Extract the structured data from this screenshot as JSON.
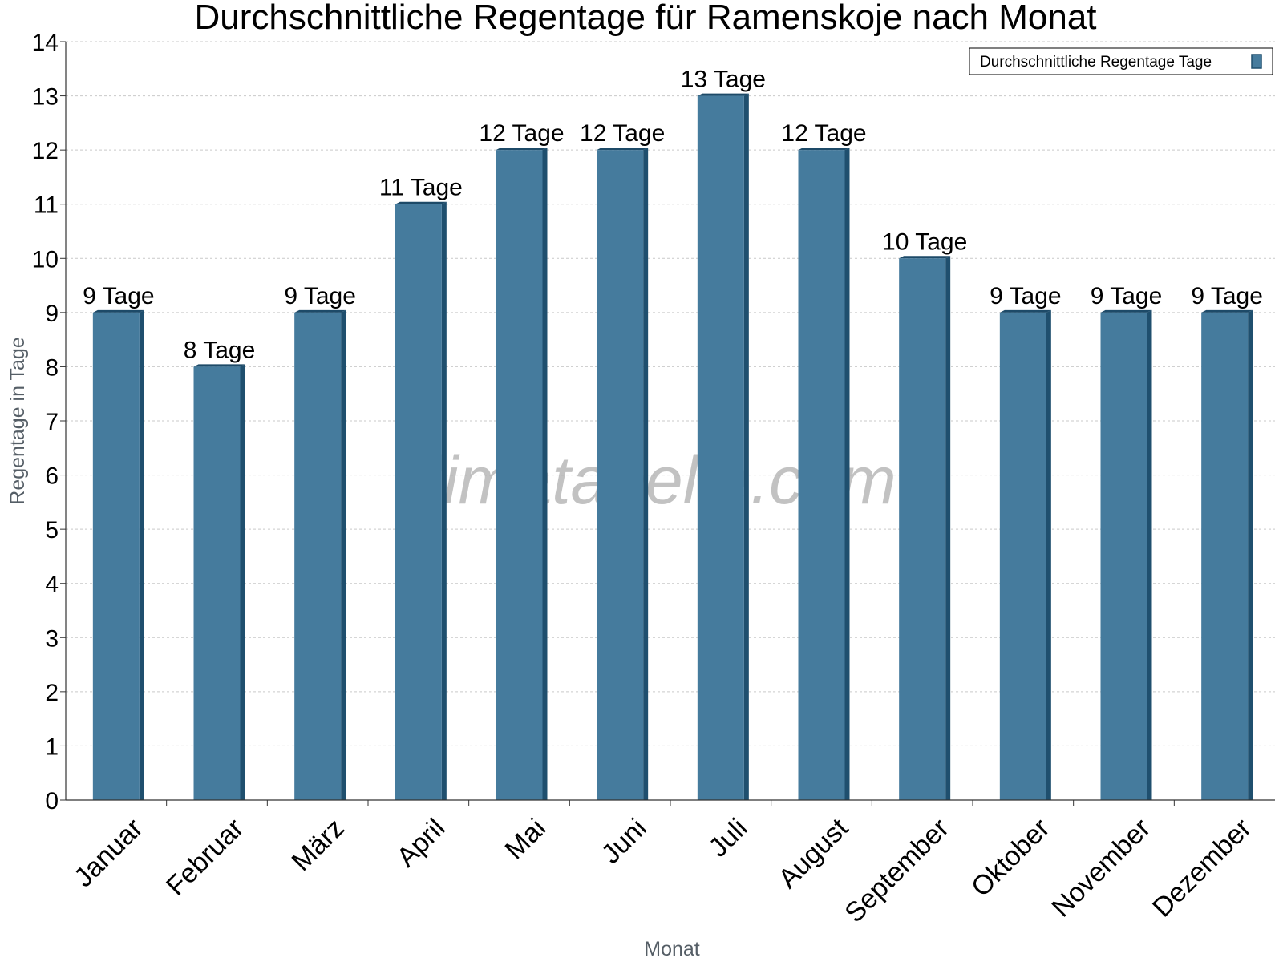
{
  "chart_data": {
    "type": "bar",
    "title": "Durchschnittliche Regentage für Ramenskoje nach Monat",
    "xlabel": "Monat",
    "ylabel": "Regentage in Tage",
    "categories": [
      "Januar",
      "Februar",
      "März",
      "April",
      "Mai",
      "Juni",
      "Juli",
      "August",
      "September",
      "Oktober",
      "November",
      "Dezember"
    ],
    "series": [
      {
        "name": "Durchschnittliche Regentage Tage",
        "values": [
          9,
          8,
          9,
          11,
          12,
          12,
          13,
          12,
          10,
          9,
          9,
          9
        ],
        "labels": [
          "9 Tage",
          "8 Tage",
          "9 Tage",
          "11 Tage",
          "12 Tage",
          "12 Tage",
          "13 Tage",
          "12 Tage",
          "10 Tage",
          "9 Tage",
          "9 Tage",
          "9 Tage"
        ],
        "color": "#457b9d"
      }
    ],
    "ylim": [
      0,
      14
    ],
    "yticks": [
      0,
      1,
      2,
      3,
      4,
      5,
      6,
      7,
      8,
      9,
      10,
      11,
      12,
      13,
      14
    ],
    "grid": true,
    "legend_position": "top-right",
    "watermark": "klimatabelle.com"
  },
  "colors": {
    "bar": "#457b9d",
    "bar_side": "#1f4f6e",
    "bar_top": "#1d4a68",
    "grid": "#c9c9c9",
    "axis": "#333333"
  }
}
